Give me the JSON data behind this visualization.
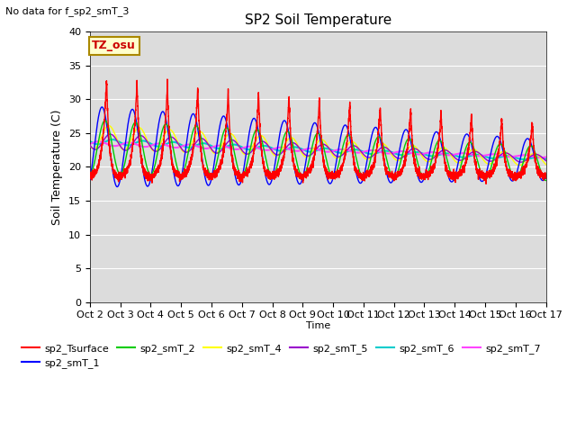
{
  "title": "SP2 Soil Temperature",
  "subtitle": "No data for f_sp2_smT_3",
  "ylabel": "Soil Temperature (C)",
  "xlabel": "Time",
  "tz_label": "TZ_osu",
  "ylim": [
    0,
    40
  ],
  "background_color": "#dcdcdc",
  "series": {
    "sp2_Tsurface": {
      "color": "#ff0000",
      "lw": 1.0
    },
    "sp2_smT_1": {
      "color": "#0000ff",
      "lw": 1.0
    },
    "sp2_smT_2": {
      "color": "#00cc00",
      "lw": 1.0
    },
    "sp2_smT_4": {
      "color": "#ffff00",
      "lw": 1.0
    },
    "sp2_smT_5": {
      "color": "#9900cc",
      "lw": 1.0
    },
    "sp2_smT_6": {
      "color": "#00cccc",
      "lw": 1.5
    },
    "sp2_smT_7": {
      "color": "#ff44ff",
      "lw": 1.5
    }
  },
  "x_tick_labels": [
    "Oct 2",
    "Oct 3",
    "Oct 4",
    "Oct 5",
    "Oct 6",
    "Oct 7",
    "Oct 8",
    "Oct 9",
    "Oct 10",
    "Oct 11",
    "Oct 12",
    "Oct 13",
    "Oct 14",
    "Oct 15",
    "Oct 16",
    "Oct 17"
  ],
  "n_days": 15,
  "pts_per_day": 288,
  "figsize": [
    6.4,
    4.8
  ],
  "dpi": 100
}
